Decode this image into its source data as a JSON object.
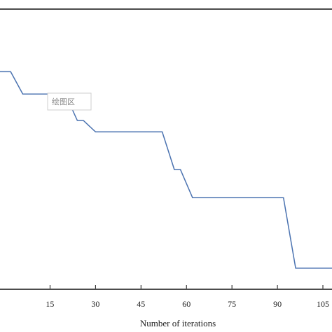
{
  "chart_data": {
    "type": "line",
    "xlabel": "Number of iterations",
    "ylabel": "",
    "title": "",
    "xlim": [
      -1.5,
      108
    ],
    "ylim": [
      0,
      10
    ],
    "x_ticks": [
      15,
      30,
      45,
      60,
      75,
      90,
      105
    ],
    "x_tick_labels": [
      "15",
      "30",
      "45",
      "60",
      "75",
      "90",
      "105"
    ],
    "grid": false,
    "series": [
      {
        "color": "#4a72b0",
        "x": [
          -1.5,
          2,
          6,
          20,
          24,
          26,
          30,
          52,
          56,
          58,
          62,
          92,
          96,
          108
        ],
        "y": [
          7.78,
          7.78,
          6.98,
          6.98,
          6.03,
          6.03,
          5.62,
          5.62,
          4.27,
          4.27,
          3.26,
          3.26,
          0.73,
          0.73
        ]
      }
    ],
    "annotation": {
      "text": "绘图区",
      "x": 12.5,
      "y": 7.15
    }
  }
}
